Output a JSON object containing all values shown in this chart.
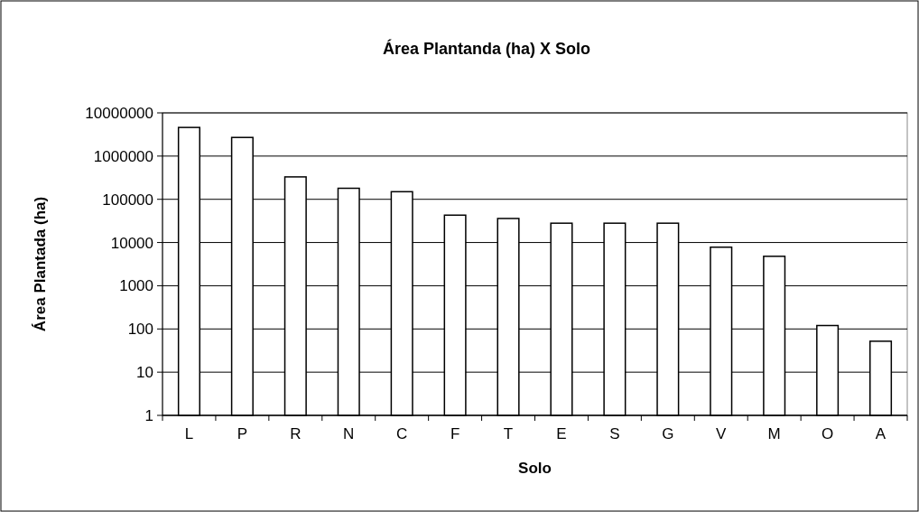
{
  "chart_data": {
    "type": "bar",
    "title": "Área Plantanda (ha) X Solo",
    "xlabel": "Solo",
    "ylabel": "Área Plantada (ha)",
    "categories": [
      "L",
      "P",
      "R",
      "N",
      "C",
      "F",
      "T",
      "E",
      "S",
      "G",
      "V",
      "M",
      "O",
      "A"
    ],
    "values": [
      4600000,
      2700000,
      330000,
      180000,
      150000,
      43000,
      36000,
      28000,
      28000,
      28000,
      7800,
      4800,
      120,
      52
    ],
    "color": "#ffffff",
    "log": true,
    "ylim": [
      1,
      10000000
    ],
    "yticks": [
      1,
      10,
      100,
      1000,
      10000,
      100000,
      1000000,
      10000000
    ],
    "grid": "y"
  }
}
